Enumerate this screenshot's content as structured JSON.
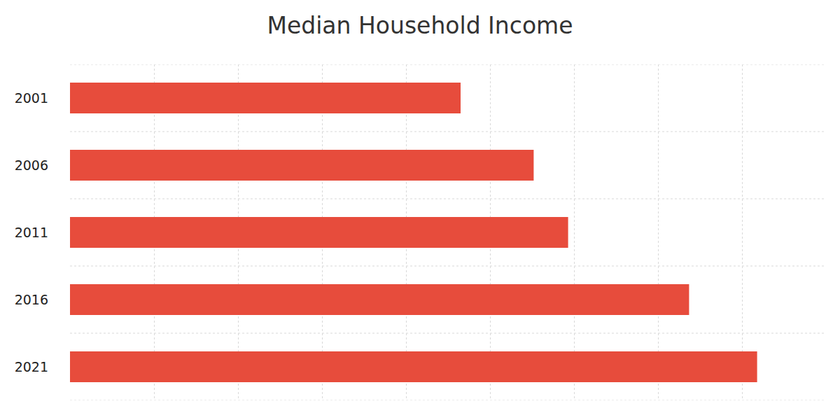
{
  "chart_data": {
    "type": "bar",
    "orientation": "horizontal",
    "title": "Median Household Income",
    "categories": [
      "2001",
      "2006",
      "2011",
      "2016",
      "2021"
    ],
    "values": [
      46500,
      55200,
      59300,
      73700,
      81800
    ],
    "color": "#e74c3c",
    "xlim": [
      0,
      90000
    ],
    "xticks": [
      0,
      10000,
      20000,
      30000,
      40000,
      50000,
      60000,
      70000,
      80000,
      90000
    ],
    "grid": true,
    "tick_labels": "y"
  }
}
